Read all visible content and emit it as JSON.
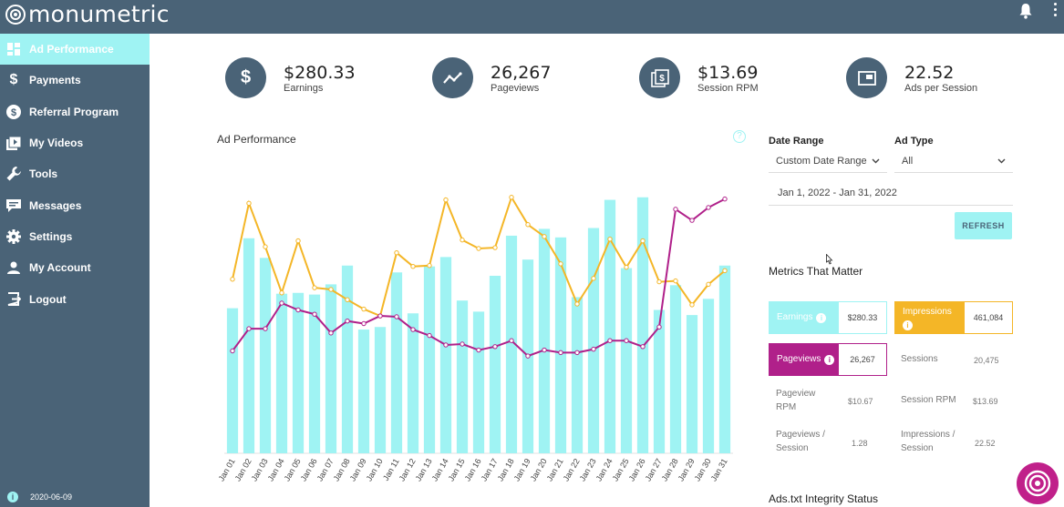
{
  "app": {
    "logo_text": "monumetric"
  },
  "sidebar": {
    "items": [
      {
        "label": "Ad Performance",
        "icon": "dashboard-icon",
        "active": true
      },
      {
        "label": "Payments",
        "icon": "dollar-icon"
      },
      {
        "label": "Referral Program",
        "icon": "dollar-circle-icon"
      },
      {
        "label": "My Videos",
        "icon": "video-icon"
      },
      {
        "label": "Tools",
        "icon": "wrench-icon"
      },
      {
        "label": "Messages",
        "icon": "chat-icon"
      },
      {
        "label": "Settings",
        "icon": "gear-icon"
      },
      {
        "label": "My Account",
        "icon": "user-icon"
      },
      {
        "label": "Logout",
        "icon": "logout-icon"
      }
    ],
    "version": "2020-06-09"
  },
  "stats": [
    {
      "value": "$280.33",
      "label": "Earnings",
      "icon": "dollar-icon"
    },
    {
      "value": "26,267",
      "label": "Pageviews",
      "icon": "trend-icon"
    },
    {
      "value": "$13.69",
      "label": "Session RPM",
      "icon": "money-icon"
    },
    {
      "value": "22.52",
      "label": "Ads per Session",
      "icon": "ad-screen-icon"
    }
  ],
  "chart_title": "Ad Performance",
  "filters": {
    "date_range_label": "Date Range",
    "date_range_value": "Custom Date Range",
    "ad_type_label": "Ad Type",
    "ad_type_value": "All",
    "date_field": "Jan 1, 2022 - Jan 31, 2022",
    "refresh_label": "REFRESH"
  },
  "metrics": {
    "title": "Metrics That Matter",
    "earnings": {
      "label": "Earnings",
      "value": "$280.33"
    },
    "impressions": {
      "label": "Impressions",
      "value": "461,084"
    },
    "pageviews": {
      "label": "Pageviews",
      "value": "26,267"
    },
    "sessions": {
      "label": "Sessions",
      "value": "20,475"
    },
    "pageview_rpm": {
      "label": "Pageview RPM",
      "value": "$10.67"
    },
    "session_rpm": {
      "label": "Session RPM",
      "value": "$13.69"
    },
    "pageviews_per_session": {
      "label": "Pageviews / Session",
      "value": "1.28"
    },
    "impressions_per_session": {
      "label": "Impressions / Session",
      "value": "22.52"
    }
  },
  "ads_txt_title": "Ads.txt Integrity Status",
  "colors": {
    "sidebar": "#4a6377",
    "accent": "#9ff3f3",
    "orange": "#f4b627",
    "magenta": "#b0208a"
  },
  "chart_data": {
    "type": "bar",
    "categories": [
      "Jan 01",
      "Jan 02",
      "Jan 03",
      "Jan 04",
      "Jan 05",
      "Jan 06",
      "Jan 07",
      "Jan 08",
      "Jan 09",
      "Jan 10",
      "Jan 11",
      "Jan 12",
      "Jan 13",
      "Jan 14",
      "Jan 15",
      "Jan 16",
      "Jan 17",
      "Jan 18",
      "Jan 19",
      "Jan 20",
      "Jan 21",
      "Jan 22",
      "Jan 23",
      "Jan 24",
      "Jan 25",
      "Jan 26",
      "Jan 27",
      "Jan 28",
      "Jan 29",
      "Jan 30",
      "Jan 31"
    ],
    "series": [
      {
        "type": "bar",
        "color": "#9ff3f3",
        "values": [
          170,
          252,
          229,
          187,
          188,
          186,
          198,
          220,
          145,
          148,
          212,
          164,
          219,
          230,
          179,
          166,
          208,
          255,
          227,
          263,
          253,
          183,
          264,
          297,
          217,
          300,
          168,
          197,
          162,
          181,
          220
        ]
      },
      {
        "type": "line",
        "color": "#f4b627",
        "values": [
          204,
          293,
          242,
          188,
          249,
          194,
          192,
          180,
          169,
          161,
          235,
          219,
          220,
          297,
          250,
          240,
          241,
          300,
          268,
          254,
          222,
          175,
          205,
          251,
          218,
          249,
          201,
          202,
          174,
          198,
          214
        ]
      },
      {
        "type": "line",
        "color": "#b0208a",
        "values": [
          120,
          146,
          146,
          176,
          168,
          163,
          141,
          155,
          152,
          161,
          160,
          145,
          138,
          127,
          128,
          121,
          125,
          132,
          114,
          121,
          118,
          118,
          122,
          132,
          132,
          125,
          148,
          286,
          273,
          288,
          298
        ]
      }
    ],
    "ylim": [
      0,
      320
    ]
  }
}
